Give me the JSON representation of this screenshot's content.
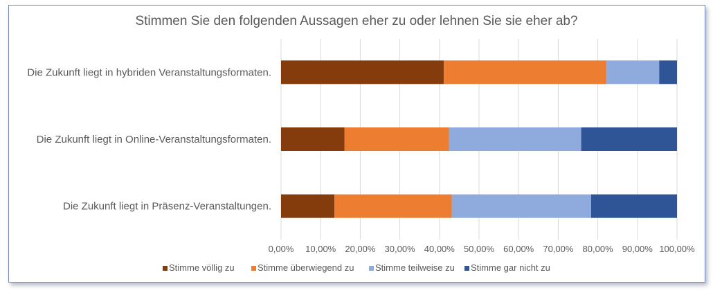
{
  "chart_data": {
    "type": "bar",
    "orientation": "horizontal",
    "stacked": "percent",
    "title": "Stimmen Sie den folgenden Aussagen eher zu oder lehnen Sie sie eher ab?",
    "xlabel": "",
    "ylabel": "",
    "xlim": [
      0,
      100
    ],
    "grid": true,
    "legend_position": "bottom",
    "categories": [
      "Die Zukunft liegt in hybriden Veranstaltungsformaten.",
      "Die Zukunft liegt in Online-Veranstaltungsformaten.",
      "Die Zukunft liegt in Präsenz-Veranstaltungen."
    ],
    "x_ticks": [
      "0,00%",
      "10,00%",
      "20,00%",
      "30,00%",
      "40,00%",
      "50,00%",
      "60,00%",
      "70,00%",
      "80,00%",
      "90,00%",
      "100,00%"
    ],
    "series": [
      {
        "name": "Stimme völlig zu",
        "color": "#843c0c",
        "values": [
          41.1,
          16.0,
          13.5
        ]
      },
      {
        "name": "Stimme überwiegend zu",
        "color": "#ed7d31",
        "values": [
          41.1,
          26.4,
          29.6
        ]
      },
      {
        "name": "Stimme teilweise zu",
        "color": "#8faadc",
        "values": [
          13.3,
          33.4,
          35.2
        ]
      },
      {
        "name": "Stimme gar nicht zu",
        "color": "#2f5597",
        "values": [
          4.5,
          24.2,
          21.7
        ]
      }
    ]
  }
}
